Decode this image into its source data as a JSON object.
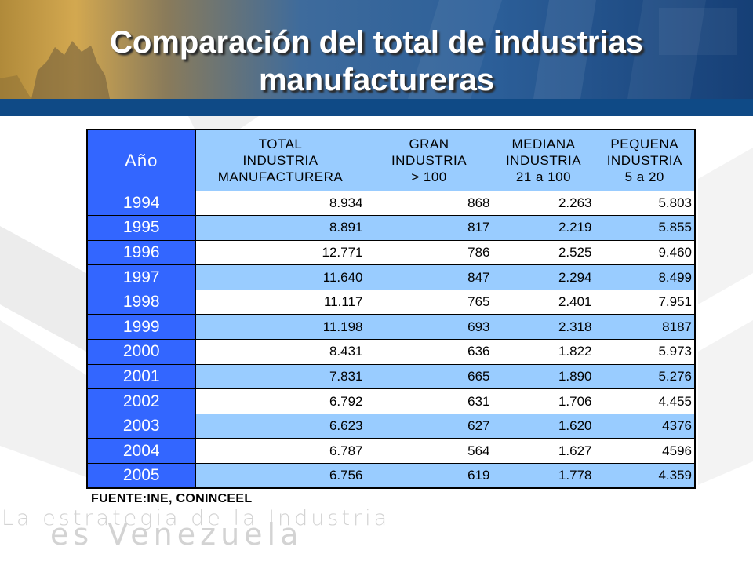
{
  "header": {
    "title_line1": "Comparación del total de industrias",
    "title_line2": "manufactureras"
  },
  "table": {
    "columns": [
      {
        "line1": "Año",
        "line2": "",
        "line3": ""
      },
      {
        "line1": "TOTAL",
        "line2": "INDUSTRIA",
        "line3": "MANUFACTURERA"
      },
      {
        "line1": "GRAN",
        "line2": "INDUSTRIA",
        "line3": ">  100"
      },
      {
        "line1": "MEDIANA",
        "line2": "INDUSTRIA",
        "line3": "21 a 100"
      },
      {
        "line1": "PEQUENA",
        "line2": "INDUSTRIA",
        "line3": "5 a 20"
      }
    ],
    "rows": [
      [
        "1994",
        "8.934",
        "868",
        "2.263",
        "5.803"
      ],
      [
        "1995",
        "8.891",
        "817",
        "2.219",
        "5.855"
      ],
      [
        "1996",
        "12.771",
        "786",
        "2.525",
        "9.460"
      ],
      [
        "1997",
        "11.640",
        "847",
        "2.294",
        "8.499"
      ],
      [
        "1998",
        "11.117",
        "765",
        "2.401",
        "7.951"
      ],
      [
        "1999",
        "11.198",
        "693",
        "2.318",
        "8187"
      ],
      [
        "2000",
        "8.431",
        "636",
        "1.822",
        "5.973"
      ],
      [
        "2001",
        "7.831",
        "665",
        "1.890",
        "5.276"
      ],
      [
        "2002",
        "6.792",
        "631",
        "1.706",
        "4.455"
      ],
      [
        "2003",
        "6.623",
        "627",
        "1.620",
        "4376"
      ],
      [
        "2004",
        "6.787",
        "564",
        "1.627",
        "4596"
      ],
      [
        "2005",
        "6.756",
        "619",
        "1.778",
        "4.359"
      ]
    ]
  },
  "source": "FUENTE:INE, CONINCEEL",
  "watermark": {
    "line1": "La estrategia de la Industria",
    "line2": "es Venezuela"
  },
  "colors": {
    "year_column": "#3366ff",
    "header_cell": "#99ccff",
    "stripe": "#99ccff",
    "banner_bar": "#0f4a86"
  }
}
